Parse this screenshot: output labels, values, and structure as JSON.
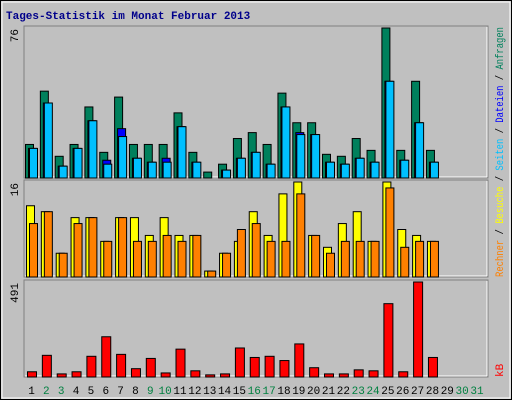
{
  "title": "Tages-Statistik im Monat Februar 2013",
  "categories": [
    "1",
    "2",
    "3",
    "4",
    "5",
    "6",
    "7",
    "8",
    "9",
    "10",
    "11",
    "12",
    "13",
    "14",
    "15",
    "16",
    "17",
    "18",
    "19",
    "20",
    "21",
    "22",
    "23",
    "24",
    "25",
    "26",
    "27",
    "28",
    "29",
    "30",
    "31"
  ],
  "category_colors": [
    "#000000",
    "#008040",
    "#008040",
    "#000000",
    "#000000",
    "#000000",
    "#000000",
    "#000000",
    "#008040",
    "#008040",
    "#000000",
    "#000000",
    "#000000",
    "#000000",
    "#000000",
    "#008040",
    "#008040",
    "#000000",
    "#000000",
    "#000000",
    "#000000",
    "#000000",
    "#008040",
    "#008040",
    "#000000",
    "#000000",
    "#000000",
    "#000000",
    "#000000",
    "#008040",
    "#008040"
  ],
  "chart_data": [
    {
      "type": "bar",
      "ylim": [
        0,
        76
      ],
      "yticks": [
        76
      ],
      "series": [
        {
          "name": "Anfragen",
          "color": "#00805c",
          "values": [
            17,
            44,
            11,
            17,
            36,
            13,
            41,
            17,
            17,
            17,
            33,
            13,
            3,
            7,
            20,
            23,
            17,
            43,
            28,
            28,
            12,
            11,
            20,
            14,
            76,
            14,
            49,
            14,
            null,
            null,
            null
          ]
        },
        {
          "name": "Dateien",
          "color": "#0000ff",
          "values": [
            15,
            38,
            6,
            15,
            29,
            9,
            25,
            10,
            8,
            10,
            26,
            8,
            0,
            4,
            10,
            13,
            7,
            36,
            23,
            22,
            8,
            7,
            10,
            8,
            49,
            9,
            28,
            8,
            null,
            null,
            null
          ]
        },
        {
          "name": "Seiten",
          "color": "#00c0ff",
          "values": [
            15,
            38,
            6,
            15,
            29,
            7,
            21,
            10,
            8,
            8,
            26,
            8,
            0,
            4,
            10,
            13,
            7,
            36,
            22,
            22,
            8,
            7,
            10,
            8,
            49,
            9,
            28,
            8,
            null,
            null,
            null
          ]
        }
      ]
    },
    {
      "type": "bar",
      "ylim": [
        0,
        16
      ],
      "yticks": [
        16
      ],
      "series": [
        {
          "name": "Besuche",
          "color": "#ffff00",
          "values": [
            12,
            11,
            4,
            10,
            10,
            6,
            10,
            10,
            7,
            10,
            7,
            7,
            1,
            4,
            6,
            11,
            7,
            14,
            16,
            7,
            5,
            9,
            11,
            6,
            16,
            8,
            7,
            6,
            null,
            null,
            null
          ]
        },
        {
          "name": "Rechner",
          "color": "#ff8000",
          "values": [
            9,
            11,
            4,
            9,
            10,
            6,
            10,
            6,
            6,
            7,
            6,
            7,
            1,
            4,
            8,
            9,
            6,
            6,
            14,
            7,
            4,
            6,
            6,
            6,
            15,
            5,
            6,
            6,
            null,
            null,
            null
          ]
        }
      ]
    },
    {
      "type": "bar",
      "ylim": [
        0,
        491
      ],
      "yticks": [
        491
      ],
      "series": [
        {
          "name": "kB",
          "color": "#ff0000",
          "values": [
            27,
            112,
            16,
            27,
            107,
            208,
            117,
            43,
            96,
            21,
            144,
            32,
            11,
            16,
            150,
            101,
            107,
            85,
            171,
            48,
            16,
            16,
            37,
            32,
            379,
            27,
            491,
            101,
            null,
            null,
            null
          ]
        }
      ]
    }
  ]
}
